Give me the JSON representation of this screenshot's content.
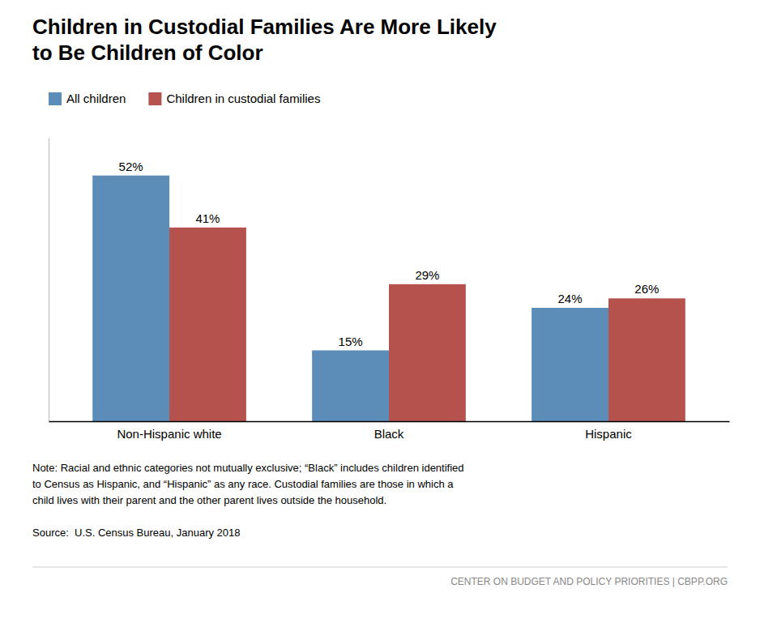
{
  "chart_data": {
    "type": "bar",
    "title": "Children in Custodial Families Are More Likely\nto Be Children of Color",
    "categories": [
      "Non-Hispanic white",
      "Black",
      "Hispanic"
    ],
    "series": [
      {
        "name": "All children",
        "color": "#5b8db8",
        "values": [
          52,
          15,
          24
        ],
        "value_labels": [
          "52%",
          "15%",
          "24%"
        ]
      },
      {
        "name": "Children in custodial families",
        "color": "#b5524e",
        "values": [
          41,
          29,
          26
        ],
        "value_labels": [
          "41%",
          "29%",
          "26%"
        ]
      }
    ],
    "ylim": [
      0,
      60
    ],
    "data_labels": true,
    "tick_labels": "x",
    "grid": false,
    "legend": "top",
    "annotations": [
      "Note: Racial and ethnic categories not mutually exclusive; “Black” includes children identified\nto Census as Hispanic, and “Hispanic” as any race. Custodial families are those in which a\nchild lives with their parent and the other parent lives outside the household.",
      "Source:  U.S. Census Bureau, January 2018",
      "CENTER ON BUDGET AND POLICY PRIORITIES | CBPP.ORG"
    ]
  }
}
